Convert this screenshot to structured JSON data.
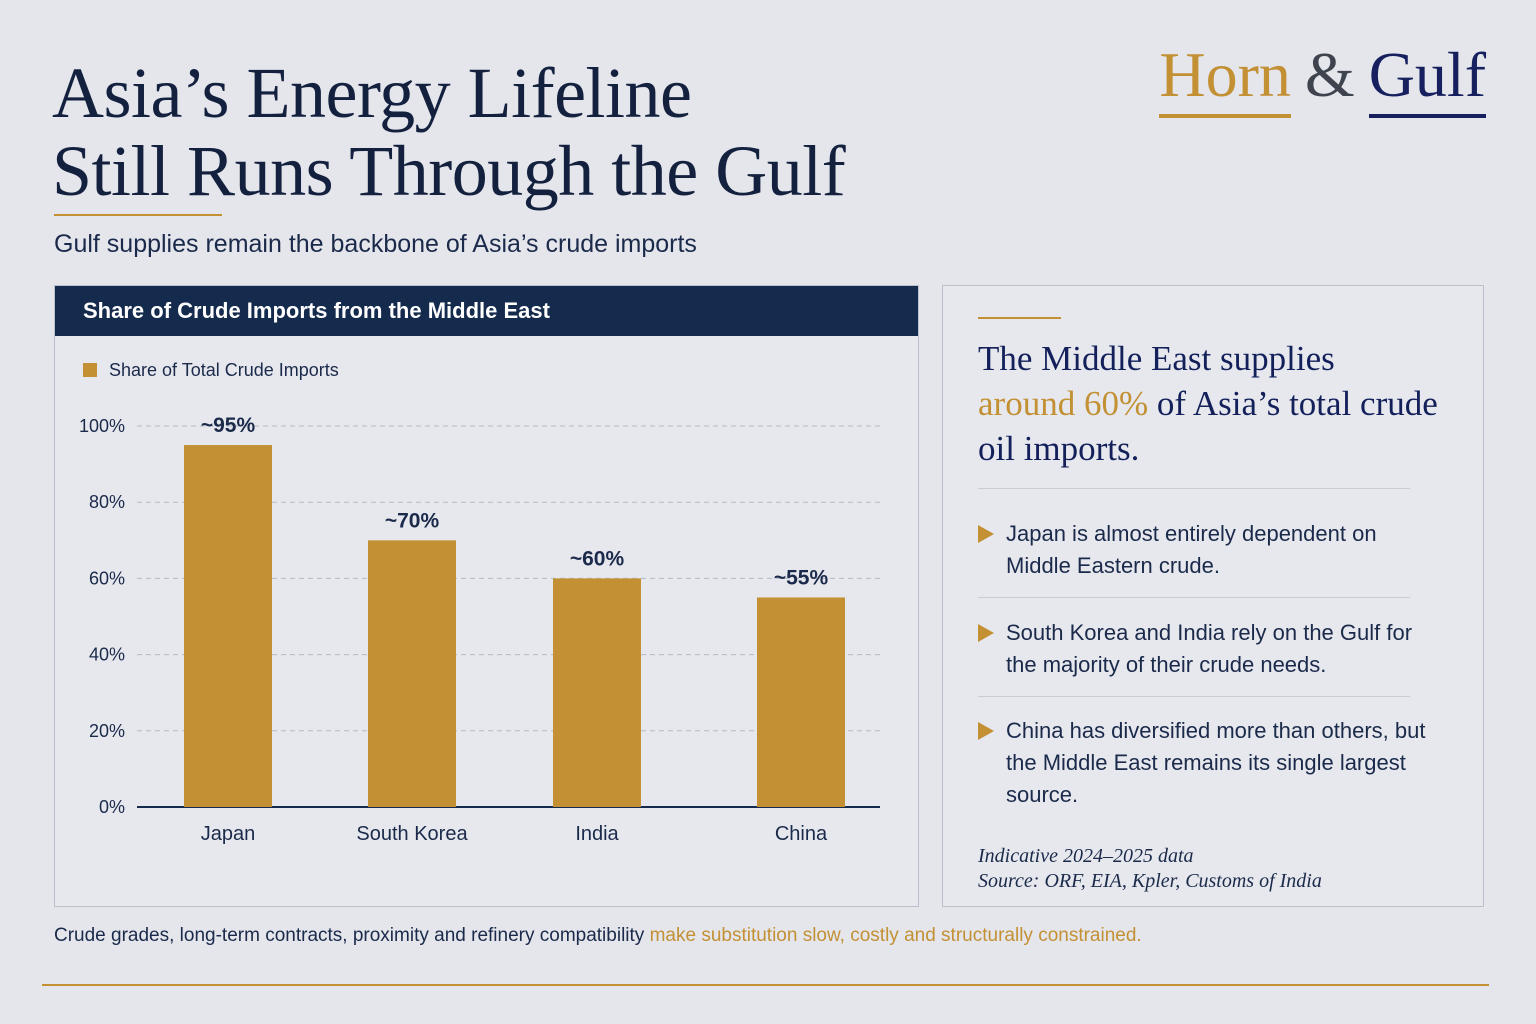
{
  "header": {
    "title_line1": "Asia’s Energy Lifeline",
    "title_line2": "Still Runs Through the Gulf",
    "subtitle": "Gulf supplies remain the backbone of Asia’s crude imports"
  },
  "brand": {
    "word1": "Horn",
    "amp": "&",
    "word2": "Gulf"
  },
  "colors": {
    "gold": "#c39034",
    "navy": "#152b4d",
    "background": "#e4e6ec"
  },
  "chart_panel": {
    "header": "Share of Crude Imports from the Middle East"
  },
  "chart_data": {
    "type": "bar",
    "title": "Share of Crude Imports from the Middle East",
    "categories": [
      "Japan",
      "South Korea",
      "India",
      "China"
    ],
    "series": [
      {
        "name": "Share of Total Crude Imports",
        "values": [
          95,
          70,
          60,
          55
        ],
        "color": "#c39034"
      }
    ],
    "data_labels": [
      "~95%",
      "~70%",
      "~60%",
      "~55%"
    ],
    "ylim": [
      0,
      100
    ],
    "yticks": [
      0,
      20,
      40,
      60,
      80,
      100
    ],
    "ytick_labels": [
      "0%",
      "20%",
      "40%",
      "60%",
      "80%",
      "100%"
    ],
    "xlabel": "",
    "ylabel": "",
    "grid": true,
    "legend": "top-left"
  },
  "info": {
    "headline_pre": "The Middle East supplies",
    "headline_highlight": "around 60%",
    "headline_post": "of Asia’s total crude oil imports.",
    "bullets": [
      "Japan is almost entirely dependent on Middle Eastern crude.",
      "South Korea and India rely on the Gulf for the majority of their crude needs.",
      "China has diversified more than others, but the Middle East remains its single largest source."
    ],
    "note_line1": "Indicative 2024–2025 data",
    "note_line2": "Source: ORF, EIA, Kpler, Customs of India"
  },
  "footer": {
    "text": "Crude grades, long-term contracts, proximity and refinery compatibility",
    "highlight": "make substitution slow, costly and structurally constrained."
  }
}
